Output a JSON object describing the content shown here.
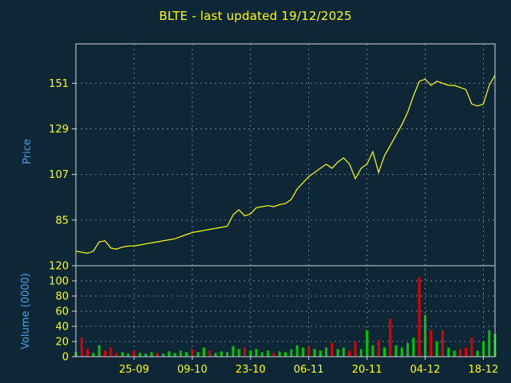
{
  "title": "BLTE - last updated 19/12/2025",
  "colors": {
    "background": "#0e2737",
    "title_text": "#ffff00",
    "tick_text": "#ffff00",
    "axis_label_text": "#4da0e8",
    "frame": "#cdd5dd",
    "grid": "#7d8fa0",
    "price_line": "#ffff00",
    "green": "#00c800",
    "red": "#e00000"
  },
  "chart_data": [
    {
      "type": "line",
      "name": "price",
      "title": "BLTE - last updated 19/12/2025",
      "ylabel": "Price",
      "yticks": [
        151,
        129,
        107,
        85
      ],
      "ylim": [
        63,
        170
      ],
      "x_tick_labels": [
        "25-09",
        "09-10",
        "23-10",
        "06-11",
        "20-11",
        "04-12",
        "18-12"
      ],
      "x_tick_indices": [
        10,
        20,
        30,
        40,
        50,
        60,
        70
      ],
      "values": [
        70,
        69.5,
        69,
        70,
        74.5,
        75,
        71.5,
        71,
        72,
        72.5,
        72.5,
        73,
        73.5,
        74,
        74.5,
        75,
        75.5,
        76,
        77,
        78,
        79,
        79.5,
        80,
        80.5,
        81,
        81.5,
        82,
        87.5,
        90,
        87,
        88,
        91,
        91.5,
        92,
        91.5,
        92.5,
        93,
        95,
        100,
        103,
        106,
        108,
        110,
        112,
        110,
        113,
        115,
        112,
        105,
        110,
        112,
        118,
        108,
        116,
        121,
        126,
        131,
        137,
        145,
        152,
        153,
        150,
        152,
        151,
        150,
        150,
        149,
        148,
        141,
        140,
        141,
        150,
        155
      ]
    },
    {
      "type": "bar",
      "name": "volume",
      "ylabel": "Volume (0000)",
      "yticks": [
        120,
        100,
        80,
        60,
        40,
        20,
        0
      ],
      "ylim": [
        0,
        120
      ],
      "values": [
        6,
        25,
        10,
        5,
        15,
        8,
        12,
        5,
        6,
        4,
        8,
        5,
        4,
        6,
        5,
        4,
        7,
        5,
        8,
        6,
        10,
        6,
        12,
        8,
        5,
        7,
        6,
        14,
        10,
        12,
        8,
        10,
        6,
        8,
        5,
        7,
        6,
        10,
        15,
        12,
        14,
        10,
        8,
        12,
        18,
        10,
        12,
        8,
        20,
        10,
        35,
        15,
        22,
        12,
        50,
        15,
        12,
        18,
        25,
        105,
        55,
        35,
        20,
        35,
        12,
        8,
        10,
        12,
        25,
        8,
        20,
        35,
        30
      ],
      "bar_colors": [
        "green",
        "red",
        "red",
        "green",
        "green",
        "red",
        "red",
        "red",
        "green",
        "green",
        "red",
        "green",
        "green",
        "green",
        "red",
        "green",
        "green",
        "green",
        "green",
        "green",
        "red",
        "green",
        "green",
        "red",
        "green",
        "green",
        "green",
        "green",
        "green",
        "red",
        "green",
        "green",
        "green",
        "green",
        "red",
        "green",
        "green",
        "green",
        "green",
        "green",
        "red",
        "green",
        "green",
        "green",
        "red",
        "green",
        "green",
        "red",
        "red",
        "green",
        "green",
        "green",
        "red",
        "green",
        "red",
        "green",
        "green",
        "green",
        "green",
        "red",
        "green",
        "red",
        "green",
        "red",
        "green",
        "green",
        "red",
        "red",
        "red",
        "green",
        "green",
        "green",
        "green"
      ]
    }
  ]
}
